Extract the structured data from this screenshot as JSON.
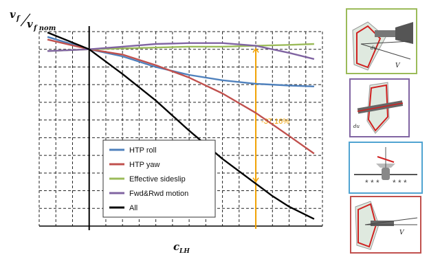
{
  "chart_data": {
    "type": "line",
    "title": "",
    "ylabel_main": "v",
    "ylabel_sub_num": "f",
    "ylabel_den": "v",
    "ylabel_sub_den": "f nom",
    "xlabel_main": "c",
    "xlabel_sub": "LH",
    "grid": true,
    "grid_style": "dashed",
    "legend_position": "bottom-left",
    "xlim": [
      -3,
      14
    ],
    "ylim": [
      -10,
      1
    ],
    "series": [
      {
        "name": "HTP roll",
        "color": "#4f81bd",
        "x": [
          -2.5,
          0,
          2,
          4,
          6,
          8,
          10,
          12,
          13.5
        ],
        "y": [
          0.7,
          0,
          -0.4,
          -1.0,
          -1.45,
          -1.75,
          -1.95,
          -2.05,
          -2.1
        ]
      },
      {
        "name": "HTP yaw",
        "color": "#c0504d",
        "x": [
          -2.5,
          0,
          2,
          4,
          6,
          8,
          10,
          12,
          13.5
        ],
        "y": [
          0.55,
          0,
          -0.3,
          -0.9,
          -1.6,
          -2.5,
          -3.6,
          -4.9,
          -5.9
        ]
      },
      {
        "name": "Effective sideslip",
        "color": "#9bbb59",
        "x": [
          -2.5,
          0,
          2,
          4,
          6,
          8,
          10,
          12,
          13.5
        ],
        "y": [
          -0.1,
          0,
          0.05,
          0.1,
          0.15,
          0.15,
          0.2,
          0.25,
          0.3
        ]
      },
      {
        "name": "Fwd&Rwd motion",
        "color": "#8064a2",
        "x": [
          -2.5,
          0,
          2,
          4,
          6,
          8,
          10,
          12,
          13.5
        ],
        "y": [
          -0.1,
          0,
          0.15,
          0.3,
          0.35,
          0.35,
          0.2,
          -0.2,
          -0.55
        ]
      },
      {
        "name": "All",
        "color": "#000000",
        "x": [
          -2.5,
          0,
          2,
          4,
          6,
          8,
          10,
          11,
          12,
          13.5
        ],
        "y": [
          0.95,
          0,
          -1.4,
          -2.9,
          -4.6,
          -6.2,
          -7.6,
          -8.3,
          -8.9,
          -9.6
        ]
      }
    ],
    "annotation": {
      "text": "-37,16%",
      "color": "#f0a000",
      "x": 10,
      "y_top": 0.05,
      "y_bottom": -7.5
    }
  }
}
